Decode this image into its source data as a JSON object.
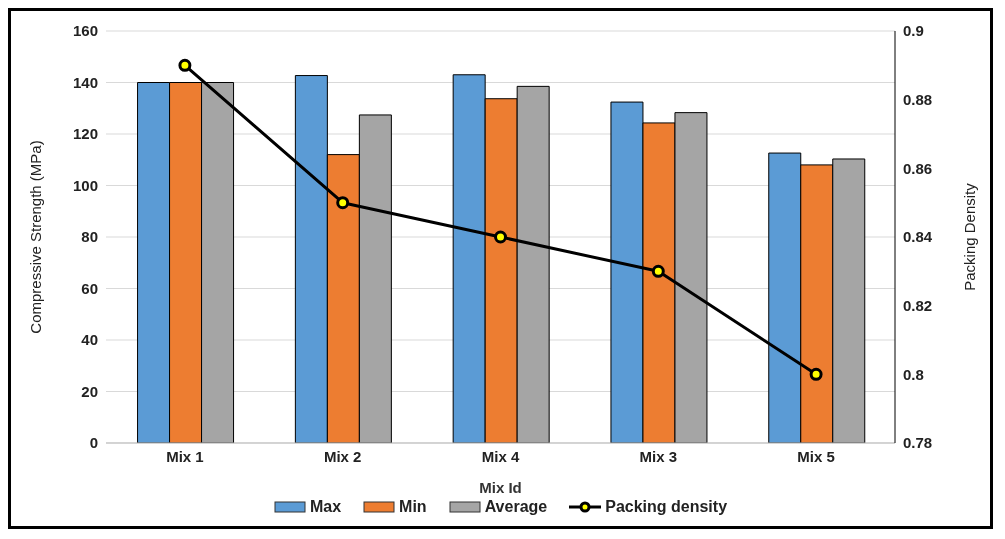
{
  "chart_data": {
    "type": "bar",
    "xlabel": "Mix Id",
    "ylabel": "Compressive Strength (MPa)",
    "y2label": "Packing Density",
    "categories": [
      "Mix 1",
      "Mix 2",
      "Mix 4",
      "Mix 3",
      "Mix 5"
    ],
    "series": [
      {
        "name": "Max",
        "color": "#5b9bd5",
        "values": [
          140,
          142.7,
          143,
          132.4,
          112.6
        ]
      },
      {
        "name": "Min",
        "color": "#ed7d31",
        "values": [
          140,
          112,
          133.7,
          124.3,
          108
        ]
      },
      {
        "name": "Average",
        "color": "#a5a5a5",
        "values": [
          140,
          127.4,
          138.5,
          128.3,
          110.3
        ]
      },
      {
        "name": "Packing density",
        "type": "line",
        "axis": "y2",
        "color": "#000000",
        "values": [
          0.89,
          0.85,
          0.84,
          0.83,
          0.8
        ]
      }
    ],
    "ylim": [
      0,
      160
    ],
    "yticks": [
      0,
      20,
      40,
      60,
      80,
      100,
      120,
      140,
      160
    ],
    "y2lim": [
      0.78,
      0.9
    ],
    "y2ticks": [
      0.78,
      0.8,
      0.82,
      0.84,
      0.86,
      0.88,
      0.9
    ],
    "grid": "y",
    "legend": "bottom",
    "marker": "circle"
  }
}
